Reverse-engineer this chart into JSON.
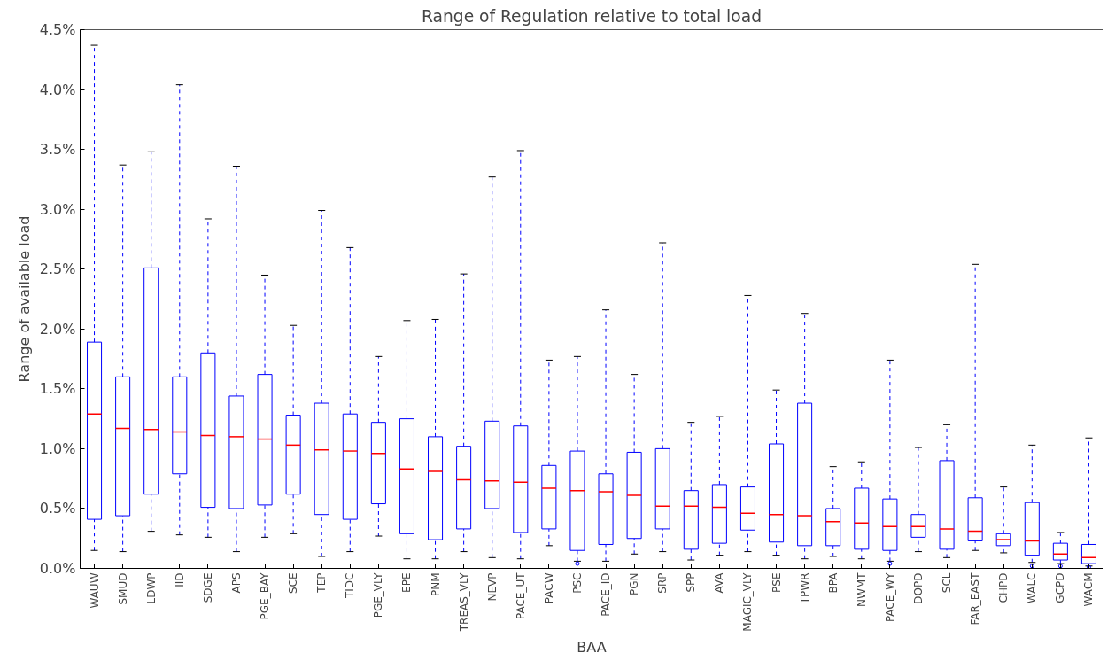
{
  "chart_data": {
    "type": "box",
    "title": "Range of Regulation relative to total load",
    "xlabel": "BAA",
    "ylabel": "Range of available load",
    "categories": [
      "WAUW",
      "SMUD",
      "LDWP",
      "IID",
      "SDGE",
      "APS",
      "PGE_BAY",
      "SCE",
      "TEP",
      "TIDC",
      "PGE_VLY",
      "EPE",
      "PNM",
      "TREAS_VLY",
      "NEVP",
      "PACE_UT",
      "PACW",
      "PSC",
      "PACE_ID",
      "PGN",
      "SRP",
      "SPP",
      "AVA",
      "MAGIC_VLY",
      "PSE",
      "TPWR",
      "BPA",
      "NWMT",
      "PACE_WY",
      "DOPD",
      "SCL",
      "FAR_EAST",
      "CHPD",
      "WALC",
      "GCPD",
      "WACM"
    ],
    "boxes": [
      {
        "low": 0.15,
        "q1": 0.41,
        "median": 1.29,
        "q3": 1.89,
        "high": 4.37
      },
      {
        "low": 0.14,
        "q1": 0.44,
        "median": 1.17,
        "q3": 1.6,
        "high": 3.37
      },
      {
        "low": 0.31,
        "q1": 0.62,
        "median": 1.16,
        "q3": 2.51,
        "high": 3.48
      },
      {
        "low": 0.28,
        "q1": 0.79,
        "median": 1.14,
        "q3": 1.6,
        "high": 4.04
      },
      {
        "low": 0.26,
        "q1": 0.51,
        "median": 1.11,
        "q3": 1.8,
        "high": 2.92
      },
      {
        "low": 0.14,
        "q1": 0.5,
        "median": 1.1,
        "q3": 1.44,
        "high": 3.36
      },
      {
        "low": 0.26,
        "q1": 0.53,
        "median": 1.08,
        "q3": 1.62,
        "high": 2.45
      },
      {
        "low": 0.29,
        "q1": 0.62,
        "median": 1.03,
        "q3": 1.28,
        "high": 2.03
      },
      {
        "low": 0.1,
        "q1": 0.45,
        "median": 0.99,
        "q3": 1.38,
        "high": 2.99
      },
      {
        "low": 0.14,
        "q1": 0.41,
        "median": 0.98,
        "q3": 1.29,
        "high": 2.68
      },
      {
        "low": 0.27,
        "q1": 0.54,
        "median": 0.96,
        "q3": 1.22,
        "high": 1.77
      },
      {
        "low": 0.08,
        "q1": 0.29,
        "median": 0.83,
        "q3": 1.25,
        "high": 2.07
      },
      {
        "low": 0.08,
        "q1": 0.24,
        "median": 0.81,
        "q3": 1.1,
        "high": 2.08
      },
      {
        "low": 0.14,
        "q1": 0.33,
        "median": 0.74,
        "q3": 1.02,
        "high": 2.46
      },
      {
        "low": 0.09,
        "q1": 0.5,
        "median": 0.73,
        "q3": 1.23,
        "high": 3.27
      },
      {
        "low": 0.08,
        "q1": 0.3,
        "median": 0.72,
        "q3": 1.19,
        "high": 3.49
      },
      {
        "low": 0.19,
        "q1": 0.33,
        "median": 0.67,
        "q3": 0.86,
        "high": 1.74
      },
      {
        "low": 0.06,
        "q1": 0.15,
        "median": 0.65,
        "q3": 0.98,
        "high": 1.77,
        "outliers": [
          0.04
        ]
      },
      {
        "low": 0.06,
        "q1": 0.2,
        "median": 0.64,
        "q3": 0.79,
        "high": 2.16
      },
      {
        "low": 0.12,
        "q1": 0.25,
        "median": 0.61,
        "q3": 0.97,
        "high": 1.62
      },
      {
        "low": 0.14,
        "q1": 0.33,
        "median": 0.52,
        "q3": 1.0,
        "high": 2.72
      },
      {
        "low": 0.07,
        "q1": 0.16,
        "median": 0.52,
        "q3": 0.65,
        "high": 1.22
      },
      {
        "low": 0.11,
        "q1": 0.21,
        "median": 0.51,
        "q3": 0.7,
        "high": 1.27
      },
      {
        "low": 0.14,
        "q1": 0.32,
        "median": 0.46,
        "q3": 0.68,
        "high": 2.28
      },
      {
        "low": 0.11,
        "q1": 0.22,
        "median": 0.45,
        "q3": 1.04,
        "high": 1.49
      },
      {
        "low": 0.08,
        "q1": 0.19,
        "median": 0.44,
        "q3": 1.38,
        "high": 2.13
      },
      {
        "low": 0.1,
        "q1": 0.19,
        "median": 0.39,
        "q3": 0.5,
        "high": 0.85
      },
      {
        "low": 0.08,
        "q1": 0.16,
        "median": 0.38,
        "q3": 0.67,
        "high": 0.89
      },
      {
        "low": 0.06,
        "q1": 0.15,
        "median": 0.35,
        "q3": 0.58,
        "high": 1.74,
        "outliers": [
          0.04
        ]
      },
      {
        "low": 0.14,
        "q1": 0.26,
        "median": 0.35,
        "q3": 0.45,
        "high": 1.01
      },
      {
        "low": 0.09,
        "q1": 0.16,
        "median": 0.33,
        "q3": 0.9,
        "high": 1.2
      },
      {
        "low": 0.15,
        "q1": 0.23,
        "median": 0.31,
        "q3": 0.59,
        "high": 2.54
      },
      {
        "low": 0.13,
        "q1": 0.19,
        "median": 0.24,
        "q3": 0.29,
        "high": 0.68
      },
      {
        "low": 0.05,
        "q1": 0.11,
        "median": 0.23,
        "q3": 0.55,
        "high": 1.03,
        "outliers": [
          0.02
        ]
      },
      {
        "low": 0.04,
        "q1": 0.07,
        "median": 0.12,
        "q3": 0.21,
        "high": 0.3,
        "outliers": [
          0.02
        ]
      },
      {
        "low": 0.02,
        "q1": 0.04,
        "median": 0.09,
        "q3": 0.2,
        "high": 1.09,
        "outliers": [
          0.01
        ]
      }
    ],
    "color": "#0000ff",
    "ylim": [
      0,
      4.5
    ],
    "yticks": [
      {
        "value": 0,
        "label": "0.0%"
      },
      {
        "value": 0.5,
        "label": "0.5%"
      },
      {
        "value": 1,
        "label": "1.0%"
      },
      {
        "value": 1.5,
        "label": "1.5%"
      },
      {
        "value": 2,
        "label": "2.0%"
      },
      {
        "value": 2.5,
        "label": "2.5%"
      },
      {
        "value": 3,
        "label": "3.0%"
      },
      {
        "value": 3.5,
        "label": "3.5%"
      },
      {
        "value": 4,
        "label": "4.0%"
      },
      {
        "value": 4.5,
        "label": "4.5%"
      }
    ],
    "grid": false,
    "line_style": "dashed"
  }
}
